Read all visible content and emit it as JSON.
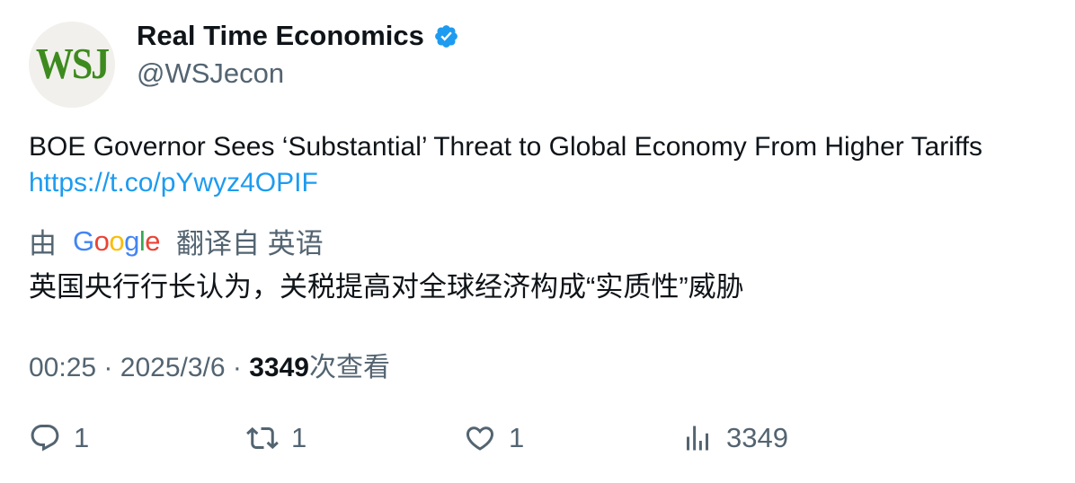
{
  "author": {
    "avatar_text": "WSJ",
    "name": "Real Time Economics",
    "handle": "@WSJecon"
  },
  "tweet": {
    "text": "BOE Governor Sees ‘Substantial’ Threat to Global Economy From Higher Tariffs",
    "link": "https://t.co/pYwyz4OPIF"
  },
  "translation": {
    "prefix": "由",
    "provider": "Google",
    "suffix": "翻译自 英语",
    "text": "英国央行行长认为，关税提高对全球经济构成“实质性”威胁"
  },
  "meta": {
    "time": "00:25",
    "separator": "·",
    "date": "2025/3/6",
    "views": "3349",
    "views_label": "次查看"
  },
  "actions": {
    "replies": "1",
    "retweets": "1",
    "likes": "1",
    "views": "3349"
  },
  "colors": {
    "verified": "#1d9bf0",
    "link": "#1d9bf0",
    "muted": "#536471"
  }
}
